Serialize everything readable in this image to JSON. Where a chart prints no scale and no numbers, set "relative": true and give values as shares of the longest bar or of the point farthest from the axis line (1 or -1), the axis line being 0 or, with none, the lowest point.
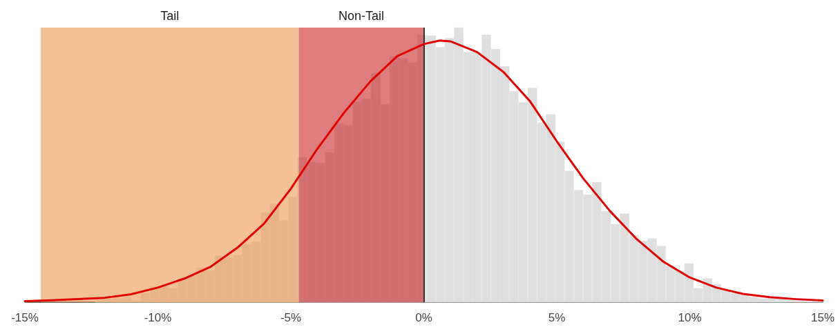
{
  "chart_data": {
    "type": "histogram",
    "relative": true,
    "xlim": [
      -15,
      15
    ],
    "xticks": [
      {
        "value": -15,
        "label": "-15%"
      },
      {
        "value": -10,
        "label": "-10%"
      },
      {
        "value": -5,
        "label": "-5%"
      },
      {
        "value": 0,
        "label": "0%"
      },
      {
        "value": 5,
        "label": "5%"
      },
      {
        "value": 10,
        "label": "10%"
      },
      {
        "value": 15,
        "label": "15%"
      }
    ],
    "tick_labels": "x",
    "marker": "none",
    "line_style": "solid",
    "series": [
      {
        "type": "histogram",
        "color": "#dedede",
        "bins": [
          -12.37,
          -12.02,
          -11.67,
          -11.33,
          -10.98,
          -10.64,
          -10.29,
          -9.94,
          -9.6,
          -9.25,
          -8.9,
          -8.56,
          -8.21,
          -7.86,
          -7.52,
          -7.17,
          -6.83,
          -6.48,
          -6.13,
          -5.79,
          -5.44,
          -5.09,
          -4.75,
          -4.4,
          -4.06,
          -3.71,
          -3.36,
          -3.02,
          -2.67,
          -2.32,
          -1.98,
          -1.63,
          -1.29,
          -0.94,
          -0.59,
          -0.25,
          0.1,
          0.45,
          0.79,
          1.14,
          1.49,
          1.83,
          2.18,
          2.52,
          2.87,
          3.22,
          3.56,
          3.91,
          4.26,
          4.6,
          4.95,
          5.29,
          5.64,
          5.99,
          6.33,
          6.68,
          7.03,
          7.37,
          7.72,
          8.06,
          8.41,
          8.76,
          9.1,
          9.45,
          9.8,
          10.14,
          10.49,
          10.84,
          11.18,
          11.53,
          11.87,
          12.22,
          12.57,
          12.91,
          13.26,
          13.61,
          13.95,
          14.3,
          14.64,
          14.99
        ],
        "values": [
          0.007,
          0.012,
          0.015,
          0.019,
          0.007,
          0.033,
          0.057,
          0.06,
          0.051,
          0.079,
          0.098,
          0.125,
          0.115,
          0.169,
          0.163,
          0.171,
          0.211,
          0.22,
          0.326,
          0.358,
          0.298,
          0.383,
          0.528,
          0.51,
          0.507,
          0.545,
          0.649,
          0.645,
          0.73,
          0.741,
          0.834,
          0.721,
          0.895,
          0.888,
          0.872,
          0.973,
          0.971,
          0.929,
          0.962,
          1,
          0.911,
          0.911,
          0.974,
          0.922,
          0.859,
          0.769,
          0.728,
          0.78,
          0.654,
          0.684,
          0.585,
          0.478,
          0.409,
          0.392,
          0.437,
          0.332,
          0.284,
          0.322,
          0.244,
          0.223,
          0.232,
          0.205,
          0.131,
          0.115,
          0.141,
          0.051,
          0.087,
          0.066,
          0.043,
          0.033,
          0.026,
          0.019,
          0.014,
          0.015,
          0.012,
          0.008,
          0.006,
          0.002,
          0.002
        ]
      },
      {
        "type": "line",
        "color": "#e00000",
        "x": [
          -15,
          -14,
          -13,
          -12,
          -11,
          -10,
          -9,
          -8,
          -7,
          -6,
          -5,
          -4,
          -3,
          -2,
          -1,
          0,
          0.6,
          1,
          2,
          3,
          4,
          5,
          6,
          7,
          8,
          9,
          10,
          11,
          12,
          13,
          14,
          15
        ],
        "values": [
          0.004,
          0.007,
          0.011,
          0.016,
          0.029,
          0.053,
          0.086,
          0.13,
          0.199,
          0.287,
          0.413,
          0.559,
          0.69,
          0.805,
          0.896,
          0.94,
          0.953,
          0.95,
          0.911,
          0.838,
          0.731,
          0.586,
          0.45,
          0.332,
          0.23,
          0.148,
          0.09,
          0.053,
          0.03,
          0.018,
          0.011,
          0.006
        ]
      }
    ],
    "bands": [
      {
        "axis": "x",
        "from": -14.4,
        "to": -4.7,
        "label": "Tail",
        "color": "#ed964e"
      },
      {
        "axis": "x",
        "from": -4.7,
        "to": 0,
        "label": "Non-Tail",
        "color": "#ca2628"
      }
    ],
    "ref_lines": [
      {
        "axis": "x",
        "value": 0,
        "color": "#000000",
        "line_style": "solid"
      }
    ]
  }
}
